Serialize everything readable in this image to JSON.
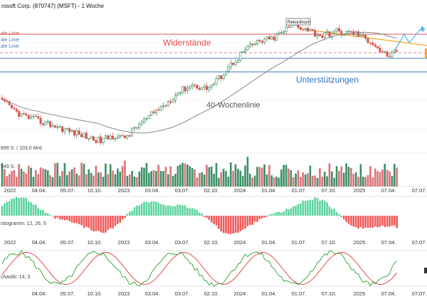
{
  "chart_title": "rosoft Corp. (870747) (MSFT) - 1 Woche",
  "annotations": {
    "rekordhoch": "Rekordhoch",
    "widerstaende": "Widerstände",
    "unterstuetzungen": "Unterstützungen",
    "wochenlinie": "40-Wochenlinie",
    "line_labels": [
      "ale Linie",
      "ale Linie",
      "ale Linie"
    ]
  },
  "volume_panel": {
    "label1": "899 S. / 103,0 Mrd.",
    "label2": "949 S."
  },
  "histogram_panel": {
    "label": "istogramm: 12, 26, 9"
  },
  "stochastic_panel": {
    "label": "chastik: 14, 3"
  },
  "x_ticks": [
    "2022",
    "04.04.",
    "05.07.",
    "10.10.",
    "2023",
    "03.04.",
    "03.07.",
    "02.10.",
    "2024",
    "01.04.",
    "01.07.",
    "07.10.",
    "2025",
    "07.04.",
    "07.07."
  ],
  "x_ticks_mid": [
    "2022",
    "04.04.",
    "05.07.",
    "10.10.",
    "2023",
    "03.04.",
    "03.07.",
    "02.10.",
    "2024",
    "01.04.",
    "01.07.",
    "07.10.",
    "2025",
    "07.04.",
    "07.07."
  ],
  "x_ticks_bottom": [
    "04.04.",
    "05.07.",
    "10.10.",
    "2023",
    "03.04.",
    "03.07.",
    "02.10.",
    "2024",
    "01.04.",
    "01.07.",
    "07.10.",
    "2025",
    "07.04.",
    "07.07."
  ],
  "colors": {
    "up": "#2e8b57",
    "down": "#d9534f",
    "resistance": "#e05555",
    "support": "#4a78c2",
    "trend": "#f5a623",
    "ma": "#888888",
    "macd_up": "#5fd4a0",
    "macd_down": "#ef5b5b",
    "stoch_k": "#2ca02c",
    "stoch_d": "#e03c3c",
    "label_red": "#e24b4b",
    "label_blue": "#2f73c9",
    "forecast": "#5bb8e6"
  },
  "chart_data": [
    {
      "type": "candlestick",
      "title": "rosoft Corp. (870747) (MSFT) - 1 Woche",
      "price_path": [
        [
          0,
          305
        ],
        [
          2,
          300
        ],
        [
          5,
          290
        ],
        [
          8,
          282
        ],
        [
          12,
          276
        ],
        [
          16,
          270
        ],
        [
          19,
          266
        ],
        [
          22,
          262
        ],
        [
          26,
          256
        ],
        [
          30,
          250
        ],
        [
          34,
          245
        ],
        [
          37,
          240
        ],
        [
          41,
          236
        ],
        [
          44,
          241
        ],
        [
          47,
          245
        ],
        [
          50,
          240
        ],
        [
          53,
          248
        ],
        [
          55,
          258
        ],
        [
          58,
          268
        ],
        [
          61,
          278
        ],
        [
          64,
          290
        ],
        [
          67,
          298
        ],
        [
          70,
          310
        ],
        [
          73,
          322
        ],
        [
          76,
          330
        ],
        [
          79,
          336
        ],
        [
          82,
          332
        ],
        [
          85,
          330
        ],
        [
          88,
          338
        ],
        [
          91,
          352
        ],
        [
          94,
          368
        ],
        [
          97,
          380
        ],
        [
          100,
          395
        ],
        [
          103,
          404
        ],
        [
          106,
          412
        ],
        [
          109,
          416
        ],
        [
          112,
          418
        ],
        [
          115,
          426
        ],
        [
          118,
          436
        ],
        [
          121,
          444
        ],
        [
          124,
          440
        ],
        [
          127,
          436
        ],
        [
          130,
          428
        ],
        [
          133,
          424
        ],
        [
          136,
          428
        ],
        [
          139,
          432
        ],
        [
          142,
          428
        ],
        [
          145,
          430
        ],
        [
          148,
          426
        ],
        [
          151,
          418
        ],
        [
          154,
          412
        ],
        [
          157,
          398
        ],
        [
          160,
          388
        ],
        [
          163,
          392
        ]
      ],
      "moving_average_name": "40-Wochenlinie",
      "horizontal_levels": {
        "resistance_upper": 445,
        "resistance_dashed": 425,
        "support_upper": 412,
        "support_lower": 385
      }
    },
    {
      "type": "bar",
      "name": "volume",
      "label": "899 S. / 103,0 Mrd."
    },
    {
      "type": "bar",
      "name": "macd_histogram",
      "label": "istogramm: 12, 26, 9"
    },
    {
      "type": "line",
      "name": "stochastik",
      "label": "chastik: 14, 3"
    }
  ]
}
